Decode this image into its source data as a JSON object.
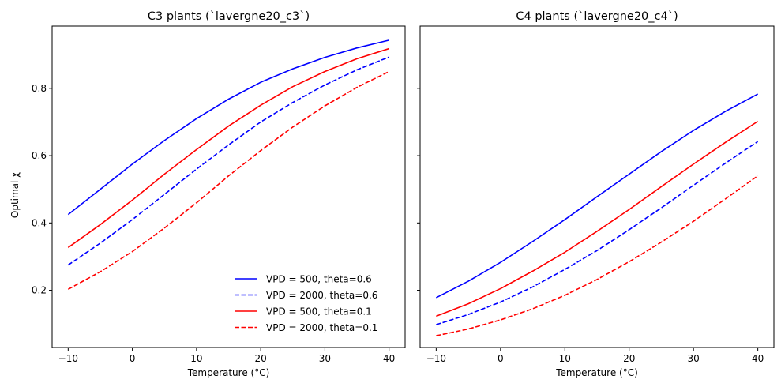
{
  "chart_data": [
    {
      "type": "line",
      "title": "C3 plants (`lavergne20_c3`)",
      "xlabel": "Temperature (°C)",
      "ylabel": "Optimal χ",
      "xlim": [
        -12.5,
        42.5
      ],
      "ylim": [
        0.03,
        0.985
      ],
      "xticks": [
        "−10",
        "0",
        "10",
        "20",
        "30",
        "40"
      ],
      "xtick_values": [
        -10,
        0,
        10,
        20,
        30,
        40
      ],
      "yticks": [
        "0.2",
        "0.4",
        "0.6",
        "0.8"
      ],
      "ytick_values": [
        0.2,
        0.4,
        0.6,
        0.8
      ],
      "legend_position": "lower-right",
      "x": [
        -10,
        -5,
        0,
        5,
        10,
        15,
        20,
        25,
        30,
        35,
        40
      ],
      "series": [
        {
          "name": "VPD = 500, theta=0.6",
          "color": "#0000ff",
          "dash": "solid",
          "values": [
            0.425,
            0.5,
            0.575,
            0.645,
            0.71,
            0.768,
            0.818,
            0.858,
            0.892,
            0.92,
            0.943
          ]
        },
        {
          "name": "VPD = 2000, theta=0.6",
          "color": "#0000ff",
          "dash": "dashed",
          "values": [
            0.275,
            0.34,
            0.41,
            0.485,
            0.56,
            0.632,
            0.7,
            0.758,
            0.81,
            0.855,
            0.893
          ]
        },
        {
          "name": "VPD = 500, theta=0.1",
          "color": "#ff0000",
          "dash": "solid",
          "values": [
            0.327,
            0.395,
            0.468,
            0.545,
            0.618,
            0.688,
            0.75,
            0.805,
            0.85,
            0.888,
            0.918
          ]
        },
        {
          "name": "VPD = 2000, theta=0.1",
          "color": "#ff0000",
          "dash": "dashed",
          "values": [
            0.203,
            0.255,
            0.315,
            0.385,
            0.46,
            0.54,
            0.615,
            0.685,
            0.748,
            0.803,
            0.85
          ]
        }
      ]
    },
    {
      "type": "line",
      "title": "C4 plants (`lavergne20_c4`)",
      "xlabel": "Temperature (°C)",
      "ylabel": "",
      "xlim": [
        -12.5,
        42.5
      ],
      "ylim": [
        0.03,
        0.985
      ],
      "xticks": [
        "−10",
        "0",
        "10",
        "20",
        "30",
        "40"
      ],
      "xtick_values": [
        -10,
        0,
        10,
        20,
        30,
        40
      ],
      "yticks": [
        "",
        "",
        "",
        ""
      ],
      "ytick_values": [
        0.2,
        0.4,
        0.6,
        0.8
      ],
      "x": [
        -10,
        -5,
        0,
        5,
        10,
        15,
        20,
        25,
        30,
        35,
        40
      ],
      "series": [
        {
          "color": "#0000ff",
          "dash": "solid",
          "values": [
            0.178,
            0.227,
            0.283,
            0.345,
            0.41,
            0.478,
            0.545,
            0.612,
            0.675,
            0.732,
            0.783
          ]
        },
        {
          "color": "#0000ff",
          "dash": "dashed",
          "values": [
            0.098,
            0.128,
            0.165,
            0.21,
            0.262,
            0.318,
            0.38,
            0.445,
            0.512,
            0.578,
            0.642
          ]
        },
        {
          "color": "#ff0000",
          "dash": "solid",
          "values": [
            0.123,
            0.16,
            0.205,
            0.257,
            0.313,
            0.375,
            0.44,
            0.508,
            0.575,
            0.64,
            0.702
          ]
        },
        {
          "color": "#ff0000",
          "dash": "dashed",
          "values": [
            0.065,
            0.085,
            0.112,
            0.145,
            0.185,
            0.232,
            0.285,
            0.343,
            0.405,
            0.472,
            0.54
          ]
        }
      ]
    }
  ]
}
